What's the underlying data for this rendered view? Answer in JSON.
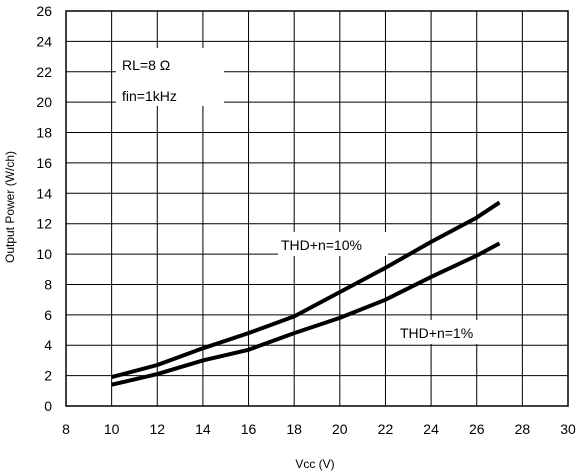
{
  "chart_data": {
    "type": "line",
    "title": "",
    "xlabel": "Vcc (V)",
    "ylabel": "Output Power (W/ch)",
    "xlim": [
      8,
      30
    ],
    "ylim": [
      0,
      26
    ],
    "xticks": [
      8,
      10,
      12,
      14,
      16,
      18,
      20,
      22,
      24,
      26,
      28,
      30
    ],
    "yticks": [
      0,
      2,
      4,
      6,
      8,
      10,
      12,
      14,
      16,
      18,
      20,
      22,
      24,
      26
    ],
    "grid": true,
    "line_color": "#000000",
    "annotations": [
      "RL=8 Ω",
      "fin=1kHz"
    ],
    "series": [
      {
        "name": "THD+n=10%",
        "x": [
          10,
          12,
          14,
          16,
          18,
          20,
          22,
          24,
          26,
          27
        ],
        "y": [
          1.9,
          2.7,
          3.8,
          4.8,
          5.9,
          7.5,
          9.1,
          10.8,
          12.4,
          13.4
        ]
      },
      {
        "name": "THD+n=1%",
        "x": [
          10,
          12,
          14,
          16,
          18,
          20,
          22,
          24,
          26,
          27
        ],
        "y": [
          1.4,
          2.1,
          3.0,
          3.7,
          4.8,
          5.8,
          7.0,
          8.5,
          9.9,
          10.7
        ]
      }
    ]
  }
}
